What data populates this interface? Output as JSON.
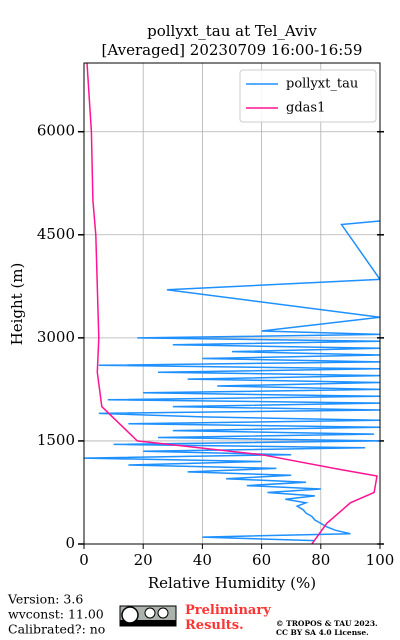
{
  "chart_data": {
    "type": "profile",
    "title": "pollyxt_tau at Tel_Aviv",
    "subtitle": "[Averaged] 20230709 16:00-16:59",
    "xlabel": "Relative Humidity (%)",
    "ylabel": "Height (m)",
    "xlim": [
      0,
      100
    ],
    "ylim": [
      0,
      7000
    ],
    "xticks": [
      0,
      20,
      40,
      60,
      80,
      100
    ],
    "yticks": [
      0,
      1500,
      3000,
      4500,
      6000
    ],
    "grid": true,
    "legend": "upper right",
    "series": [
      {
        "name": "pollyxt_tau",
        "color": "#1e90ff",
        "heights": [
          50,
          100,
          150,
          200,
          250,
          300,
          350,
          400,
          450,
          500,
          550,
          600,
          650,
          700,
          750,
          800,
          850,
          900,
          950,
          1000,
          1050,
          1100,
          1150,
          1200,
          1250,
          1300,
          1350,
          1400,
          1450,
          1500,
          1550,
          1600,
          1650,
          1700,
          1750,
          1800,
          1850,
          1900,
          1950,
          2000,
          2050,
          2100,
          2150,
          2200,
          2250,
          2300,
          2350,
          2400,
          2450,
          2500,
          2550,
          2600,
          2650,
          2700,
          2750,
          2800,
          2850,
          2900,
          2950,
          3000,
          3050,
          3100,
          3300,
          3700,
          3850,
          4650,
          4700
        ],
        "values": [
          78,
          40,
          90,
          85,
          82,
          80,
          78,
          77,
          75,
          74,
          72,
          75,
          68,
          78,
          62,
          80,
          55,
          75,
          48,
          70,
          35,
          65,
          15,
          60,
          0,
          70,
          20,
          95,
          10,
          100,
          25,
          98,
          30,
          100,
          15,
          100,
          40,
          5,
          100,
          30,
          100,
          8,
          100,
          20,
          100,
          45,
          100,
          35,
          100,
          25,
          100,
          5,
          100,
          40,
          100,
          50,
          100,
          30,
          100,
          18,
          100,
          60,
          100,
          28,
          100,
          87,
          100
        ]
      },
      {
        "name": "gdas1",
        "color": "#ff1493",
        "heights": [
          0,
          300,
          600,
          750,
          990,
          1080,
          1300,
          1500,
          2000,
          2500,
          3000,
          4500,
          5000,
          6000,
          7000
        ],
        "values": [
          77,
          82,
          90,
          98,
          99,
          87,
          60,
          18,
          6,
          4.5,
          5,
          4,
          3,
          2.5,
          1
        ]
      }
    ],
    "footer": {
      "version": "Version: 3.6",
      "wvconst": "wvconst:  11.00",
      "calibrated": "Calibrated?: no",
      "preliminary": "Preliminary Results.",
      "copyright": "© TROPOS & TAU 2023.",
      "license": "CC BY SA 4.0 License."
    }
  }
}
